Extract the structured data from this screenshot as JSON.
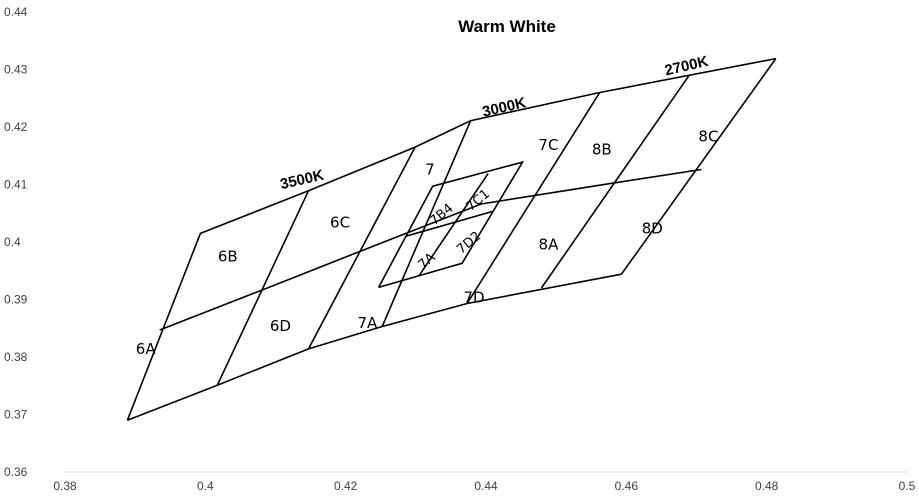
{
  "chart_data": {
    "type": "scatter",
    "title": "Warm White",
    "xlabel": "",
    "ylabel": "",
    "xlim": [
      0.38,
      0.5
    ],
    "ylim": [
      0.36,
      0.44
    ],
    "x_ticks": [
      0.38,
      0.4,
      0.42,
      0.44,
      0.46,
      0.48,
      0.5
    ],
    "x_tick_labels": [
      "0.38",
      "0.4",
      "0.42",
      "0.44",
      "0.46",
      "0.48",
      "0.5"
    ],
    "y_ticks": [
      0.36,
      0.37,
      0.38,
      0.39,
      0.4,
      0.41,
      0.42,
      0.43,
      0.44
    ],
    "y_tick_labels": [
      "0.36",
      "0.37",
      "0.38",
      "0.39",
      "0.4",
      "0.41",
      "0.42",
      "0.43",
      "0.44"
    ],
    "grid": false,
    "colors": {
      "lines": "#000000",
      "axis": "#d9d9d9",
      "ticks": "#404040"
    },
    "segments": [
      {
        "x": [
          0.3889,
          0.3993,
          0.4147,
          0.4299,
          0.4378,
          0.4562,
          0.4813
        ],
        "y": [
          0.369,
          0.4015,
          0.4089,
          0.4165,
          0.4211,
          0.426,
          0.4319
        ]
      },
      {
        "x": [
          0.3889,
          0.4017,
          0.4147,
          0.4252,
          0.4373,
          0.4593
        ],
        "y": [
          0.369,
          0.3751,
          0.3814,
          0.3853,
          0.3893,
          0.3944
        ]
      },
      {
        "x": [
          0.3935,
          0.4082,
          0.4221,
          0.4393,
          0.4579,
          0.4707
        ],
        "y": [
          0.3847,
          0.3917,
          0.3984,
          0.4066,
          0.4102,
          0.4126
        ]
      },
      {
        "x": [
          0.4813,
          0.4593
        ],
        "y": [
          0.4319,
          0.3944
        ]
      },
      {
        "x": [
          0.4689,
          0.4479
        ],
        "y": [
          0.4289,
          0.392
        ]
      },
      {
        "x": [
          0.4562,
          0.4373
        ],
        "y": [
          0.426,
          0.3893
        ]
      },
      {
        "x": [
          0.4378,
          0.4252
        ],
        "y": [
          0.4211,
          0.3853
        ]
      },
      {
        "x": [
          0.4299,
          0.4147
        ],
        "y": [
          0.4165,
          0.3814
        ]
      },
      {
        "x": [
          0.4147,
          0.4017
        ],
        "y": [
          0.4089,
          0.3751
        ]
      },
      {
        "x": [
          0.4247,
          0.4324,
          0.4452,
          0.4366,
          0.4247
        ],
        "y": [
          0.3921,
          0.4097,
          0.4139,
          0.3963,
          0.3921
        ]
      },
      {
        "x": [
          0.4286,
          0.4409
        ],
        "y": [
          0.401,
          0.4053
        ]
      },
      {
        "x": [
          0.4305,
          0.4403
        ],
        "y": [
          0.3942,
          0.4119
        ]
      }
    ],
    "region_labels": [
      {
        "text": "6A",
        "x": 0.3915,
        "y": 0.3813
      },
      {
        "text": "6B",
        "x": 0.4032,
        "y": 0.3974
      },
      {
        "text": "6C",
        "x": 0.4192,
        "y": 0.4033
      },
      {
        "text": "6D",
        "x": 0.4107,
        "y": 0.3853
      },
      {
        "text": "7",
        "x": 0.432,
        "y": 0.4125
      },
      {
        "text": "7A",
        "x": 0.4231,
        "y": 0.3858
      },
      {
        "text": "7B4",
        "x": 0.4337,
        "y": 0.4047,
        "angle": -40
      },
      {
        "text": "7C1",
        "x": 0.4389,
        "y": 0.4072,
        "angle": -40
      },
      {
        "text": "7A",
        "x": 0.4316,
        "y": 0.3966,
        "angle": -40
      },
      {
        "text": "7D2",
        "x": 0.4376,
        "y": 0.3998,
        "angle": -40
      },
      {
        "text": "7D",
        "x": 0.4383,
        "y": 0.3903
      },
      {
        "text": "7C",
        "x": 0.4489,
        "y": 0.4168
      },
      {
        "text": "8B",
        "x": 0.4565,
        "y": 0.416
      },
      {
        "text": "8C",
        "x": 0.4717,
        "y": 0.4183
      },
      {
        "text": "8A",
        "x": 0.4489,
        "y": 0.3995
      },
      {
        "text": "8D",
        "x": 0.4637,
        "y": 0.4023
      }
    ],
    "cct_labels": [
      {
        "text": "3500K",
        "x": 0.4138,
        "y": 0.4107,
        "angle": -13
      },
      {
        "text": "3000K",
        "x": 0.4426,
        "y": 0.4233,
        "angle": -13
      },
      {
        "text": "2700K",
        "x": 0.4686,
        "y": 0.4305,
        "angle": -13
      }
    ]
  }
}
